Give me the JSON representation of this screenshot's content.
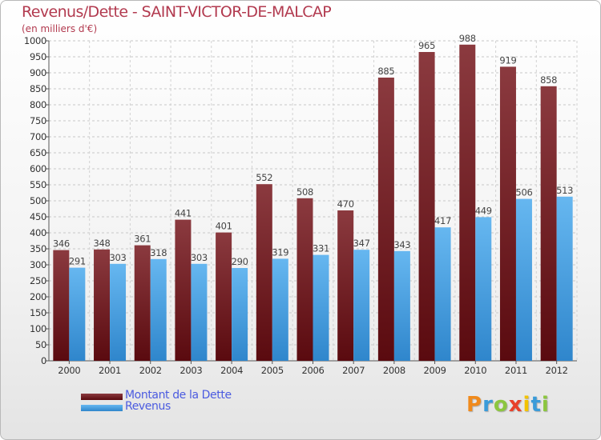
{
  "chart_data": {
    "type": "bar",
    "title": "Revenus/Dette - SAINT-VICTOR-DE-MALCAP",
    "subtitle": "(en milliers d'€)",
    "categories": [
      "2000",
      "2001",
      "2002",
      "2003",
      "2004",
      "2005",
      "2006",
      "2007",
      "2008",
      "2009",
      "2010",
      "2011",
      "2012"
    ],
    "series": [
      {
        "name": "Montant de la Dette",
        "color": "#7a1a1f",
        "values": [
          346,
          348,
          361,
          441,
          401,
          552,
          508,
          470,
          885,
          965,
          988,
          919,
          858
        ]
      },
      {
        "name": "Revenus",
        "color": "#4aa3e6",
        "values": [
          291,
          303,
          318,
          303,
          290,
          319,
          331,
          347,
          343,
          417,
          449,
          506,
          513
        ]
      }
    ],
    "ylim": [
      0,
      1000
    ],
    "ytick_step": 50,
    "yticks": [
      "0",
      "50",
      "100",
      "150",
      "200",
      "250",
      "300",
      "350",
      "400",
      "450",
      "500",
      "550",
      "600",
      "650",
      "700",
      "750",
      "800",
      "850",
      "900",
      "950",
      "1000"
    ],
    "grid": true,
    "legend_position": "bottom-left"
  },
  "logo": {
    "letters": [
      "P",
      "r",
      "o",
      "x",
      "i",
      "t",
      "i"
    ],
    "colors": [
      "#f08a1c",
      "#3a9bd9",
      "#8cc63f",
      "#e8402a",
      "#f3c300",
      "#3a9bd9",
      "#8cc63f"
    ]
  }
}
